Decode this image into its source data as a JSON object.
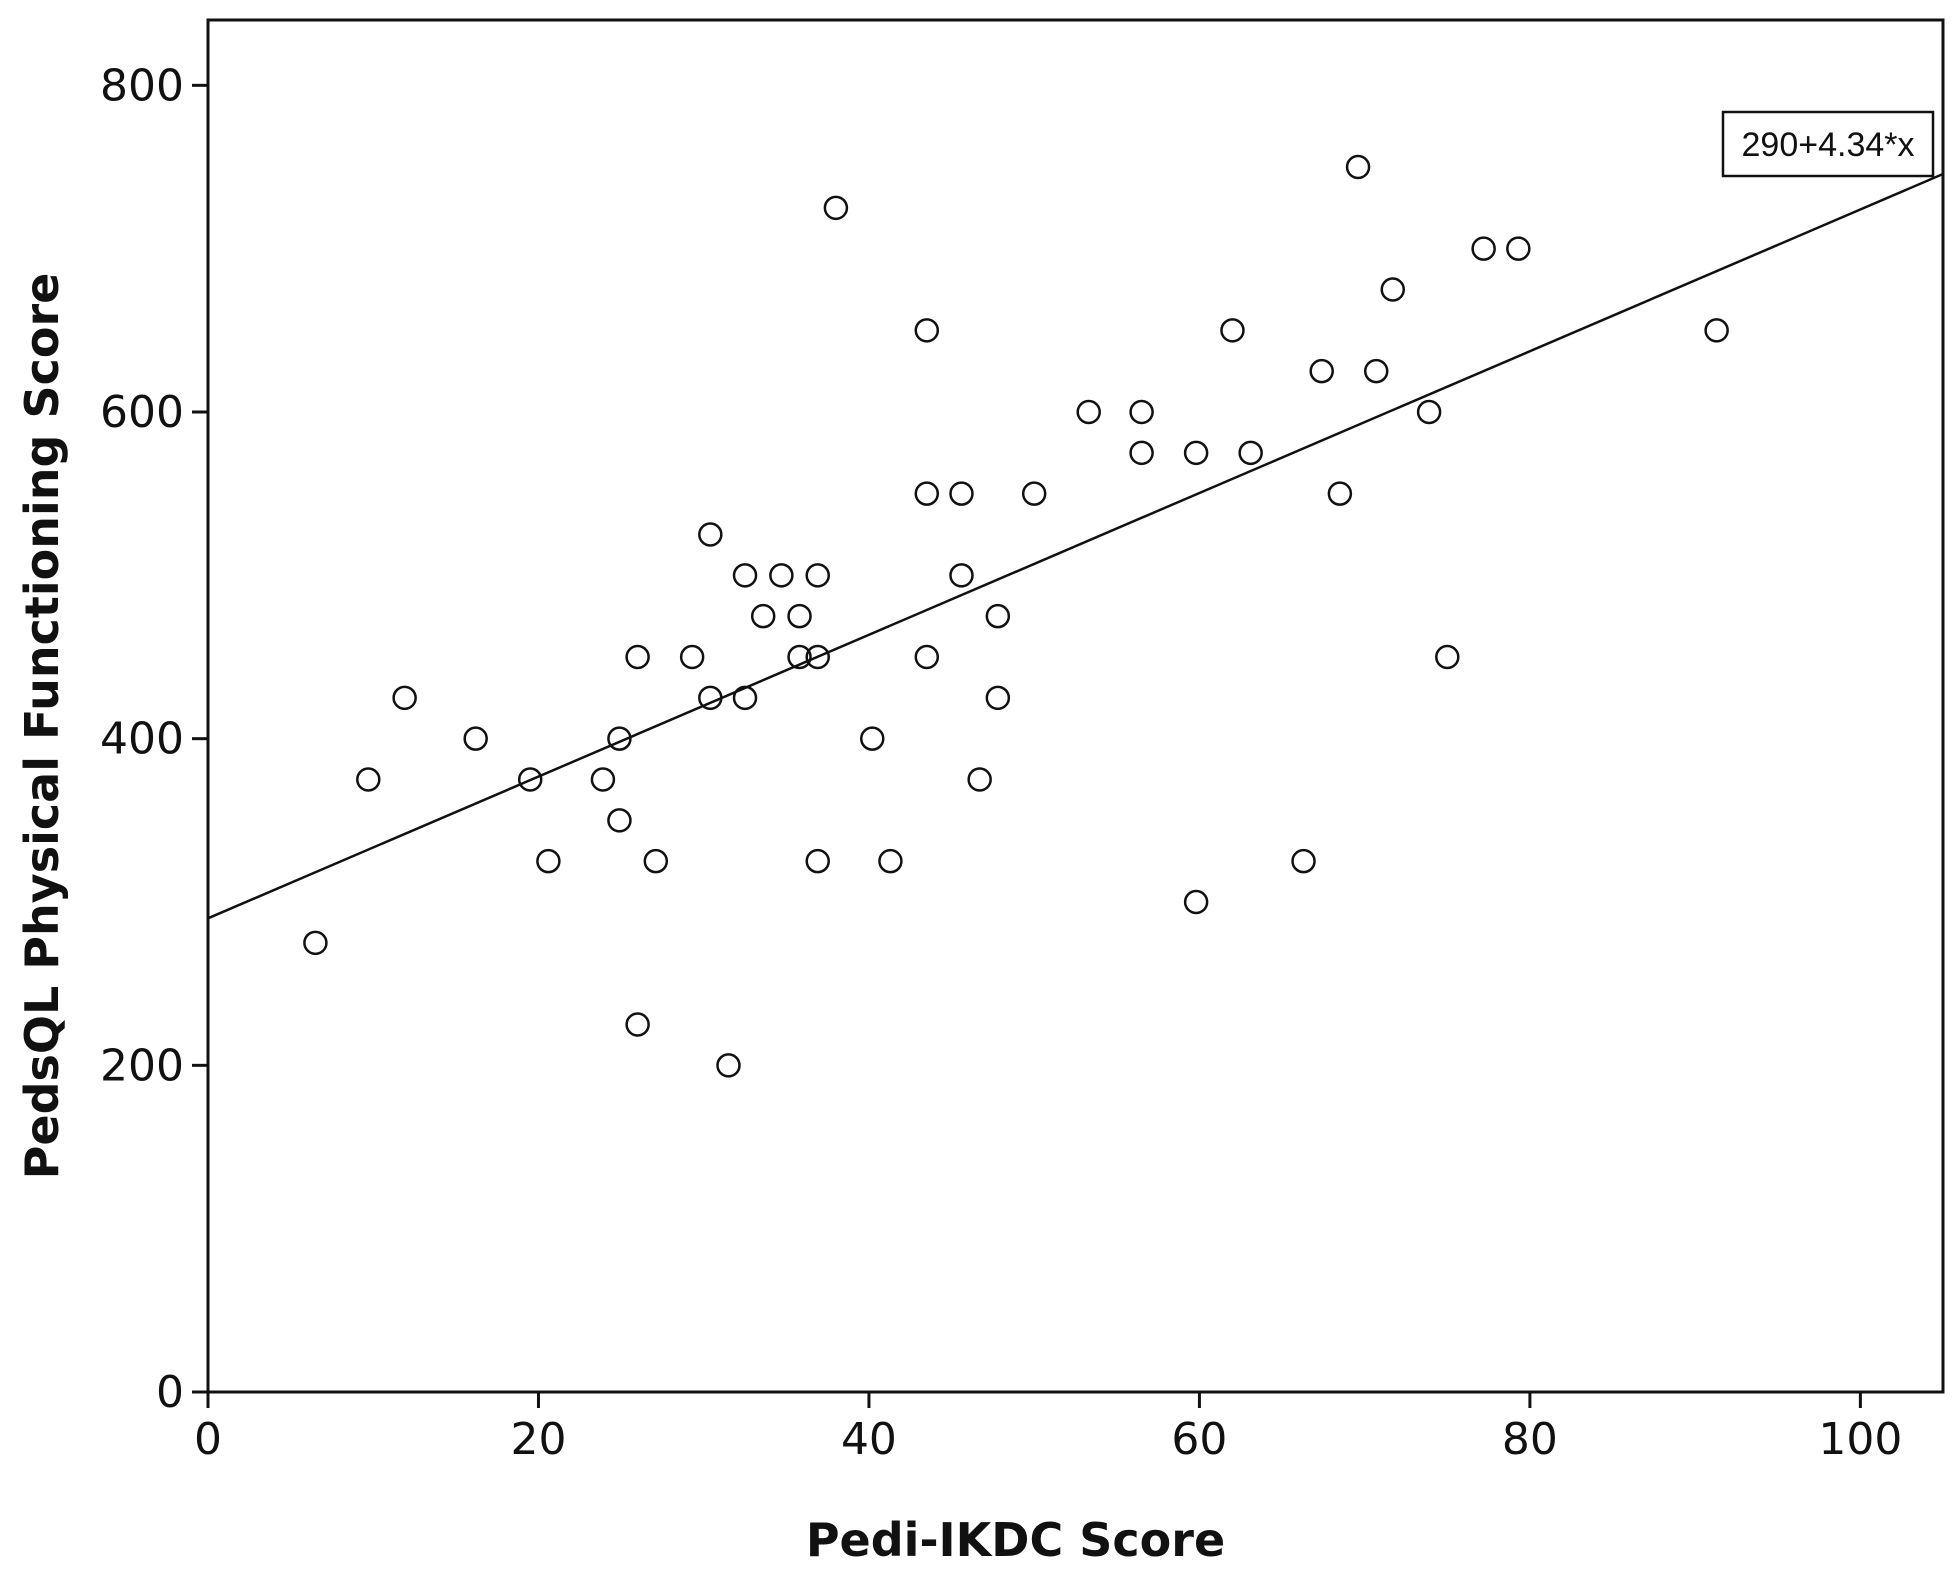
{
  "chart_data": {
    "type": "scatter",
    "xlabel": "Pedi-IKDC Score",
    "ylabel": "PedsQL Physical Functioning Score",
    "xlim": [
      0,
      105
    ],
    "ylim": [
      0,
      840
    ],
    "x_ticks": [
      0,
      20,
      40,
      60,
      80,
      100
    ],
    "y_ticks": [
      0,
      200,
      400,
      600,
      800
    ],
    "grid": false,
    "fit_line": {
      "intercept": 290,
      "slope": 4.34,
      "label": "290+4.34*x"
    },
    "points": [
      {
        "x": 6.5,
        "y": 275
      },
      {
        "x": 9.7,
        "y": 375
      },
      {
        "x": 11.9,
        "y": 425
      },
      {
        "x": 16.2,
        "y": 400
      },
      {
        "x": 19.5,
        "y": 375
      },
      {
        "x": 20.6,
        "y": 325
      },
      {
        "x": 23.9,
        "y": 375
      },
      {
        "x": 24.9,
        "y": 400
      },
      {
        "x": 24.9,
        "y": 350
      },
      {
        "x": 26.0,
        "y": 450
      },
      {
        "x": 26.0,
        "y": 225
      },
      {
        "x": 27.1,
        "y": 325
      },
      {
        "x": 29.3,
        "y": 450
      },
      {
        "x": 30.4,
        "y": 525
      },
      {
        "x": 30.4,
        "y": 425
      },
      {
        "x": 31.5,
        "y": 200
      },
      {
        "x": 32.5,
        "y": 500
      },
      {
        "x": 32.5,
        "y": 425
      },
      {
        "x": 33.6,
        "y": 475
      },
      {
        "x": 34.7,
        "y": 500
      },
      {
        "x": 35.8,
        "y": 475
      },
      {
        "x": 35.8,
        "y": 450
      },
      {
        "x": 36.9,
        "y": 500
      },
      {
        "x": 36.9,
        "y": 450
      },
      {
        "x": 36.9,
        "y": 325
      },
      {
        "x": 38.0,
        "y": 725
      },
      {
        "x": 40.2,
        "y": 400
      },
      {
        "x": 41.3,
        "y": 325
      },
      {
        "x": 43.5,
        "y": 650
      },
      {
        "x": 43.5,
        "y": 550
      },
      {
        "x": 43.5,
        "y": 450
      },
      {
        "x": 45.6,
        "y": 550
      },
      {
        "x": 45.6,
        "y": 500
      },
      {
        "x": 46.7,
        "y": 375
      },
      {
        "x": 47.8,
        "y": 475
      },
      {
        "x": 47.8,
        "y": 425
      },
      {
        "x": 50.0,
        "y": 550
      },
      {
        "x": 53.3,
        "y": 600
      },
      {
        "x": 56.5,
        "y": 600
      },
      {
        "x": 56.5,
        "y": 575
      },
      {
        "x": 59.8,
        "y": 575
      },
      {
        "x": 59.8,
        "y": 300
      },
      {
        "x": 62.0,
        "y": 650
      },
      {
        "x": 63.1,
        "y": 575
      },
      {
        "x": 66.3,
        "y": 325
      },
      {
        "x": 67.4,
        "y": 625
      },
      {
        "x": 68.5,
        "y": 550
      },
      {
        "x": 69.6,
        "y": 750
      },
      {
        "x": 70.7,
        "y": 625
      },
      {
        "x": 71.7,
        "y": 675
      },
      {
        "x": 73.9,
        "y": 600
      },
      {
        "x": 75.0,
        "y": 450
      },
      {
        "x": 77.2,
        "y": 700
      },
      {
        "x": 79.3,
        "y": 700
      },
      {
        "x": 91.3,
        "y": 650
      }
    ]
  }
}
